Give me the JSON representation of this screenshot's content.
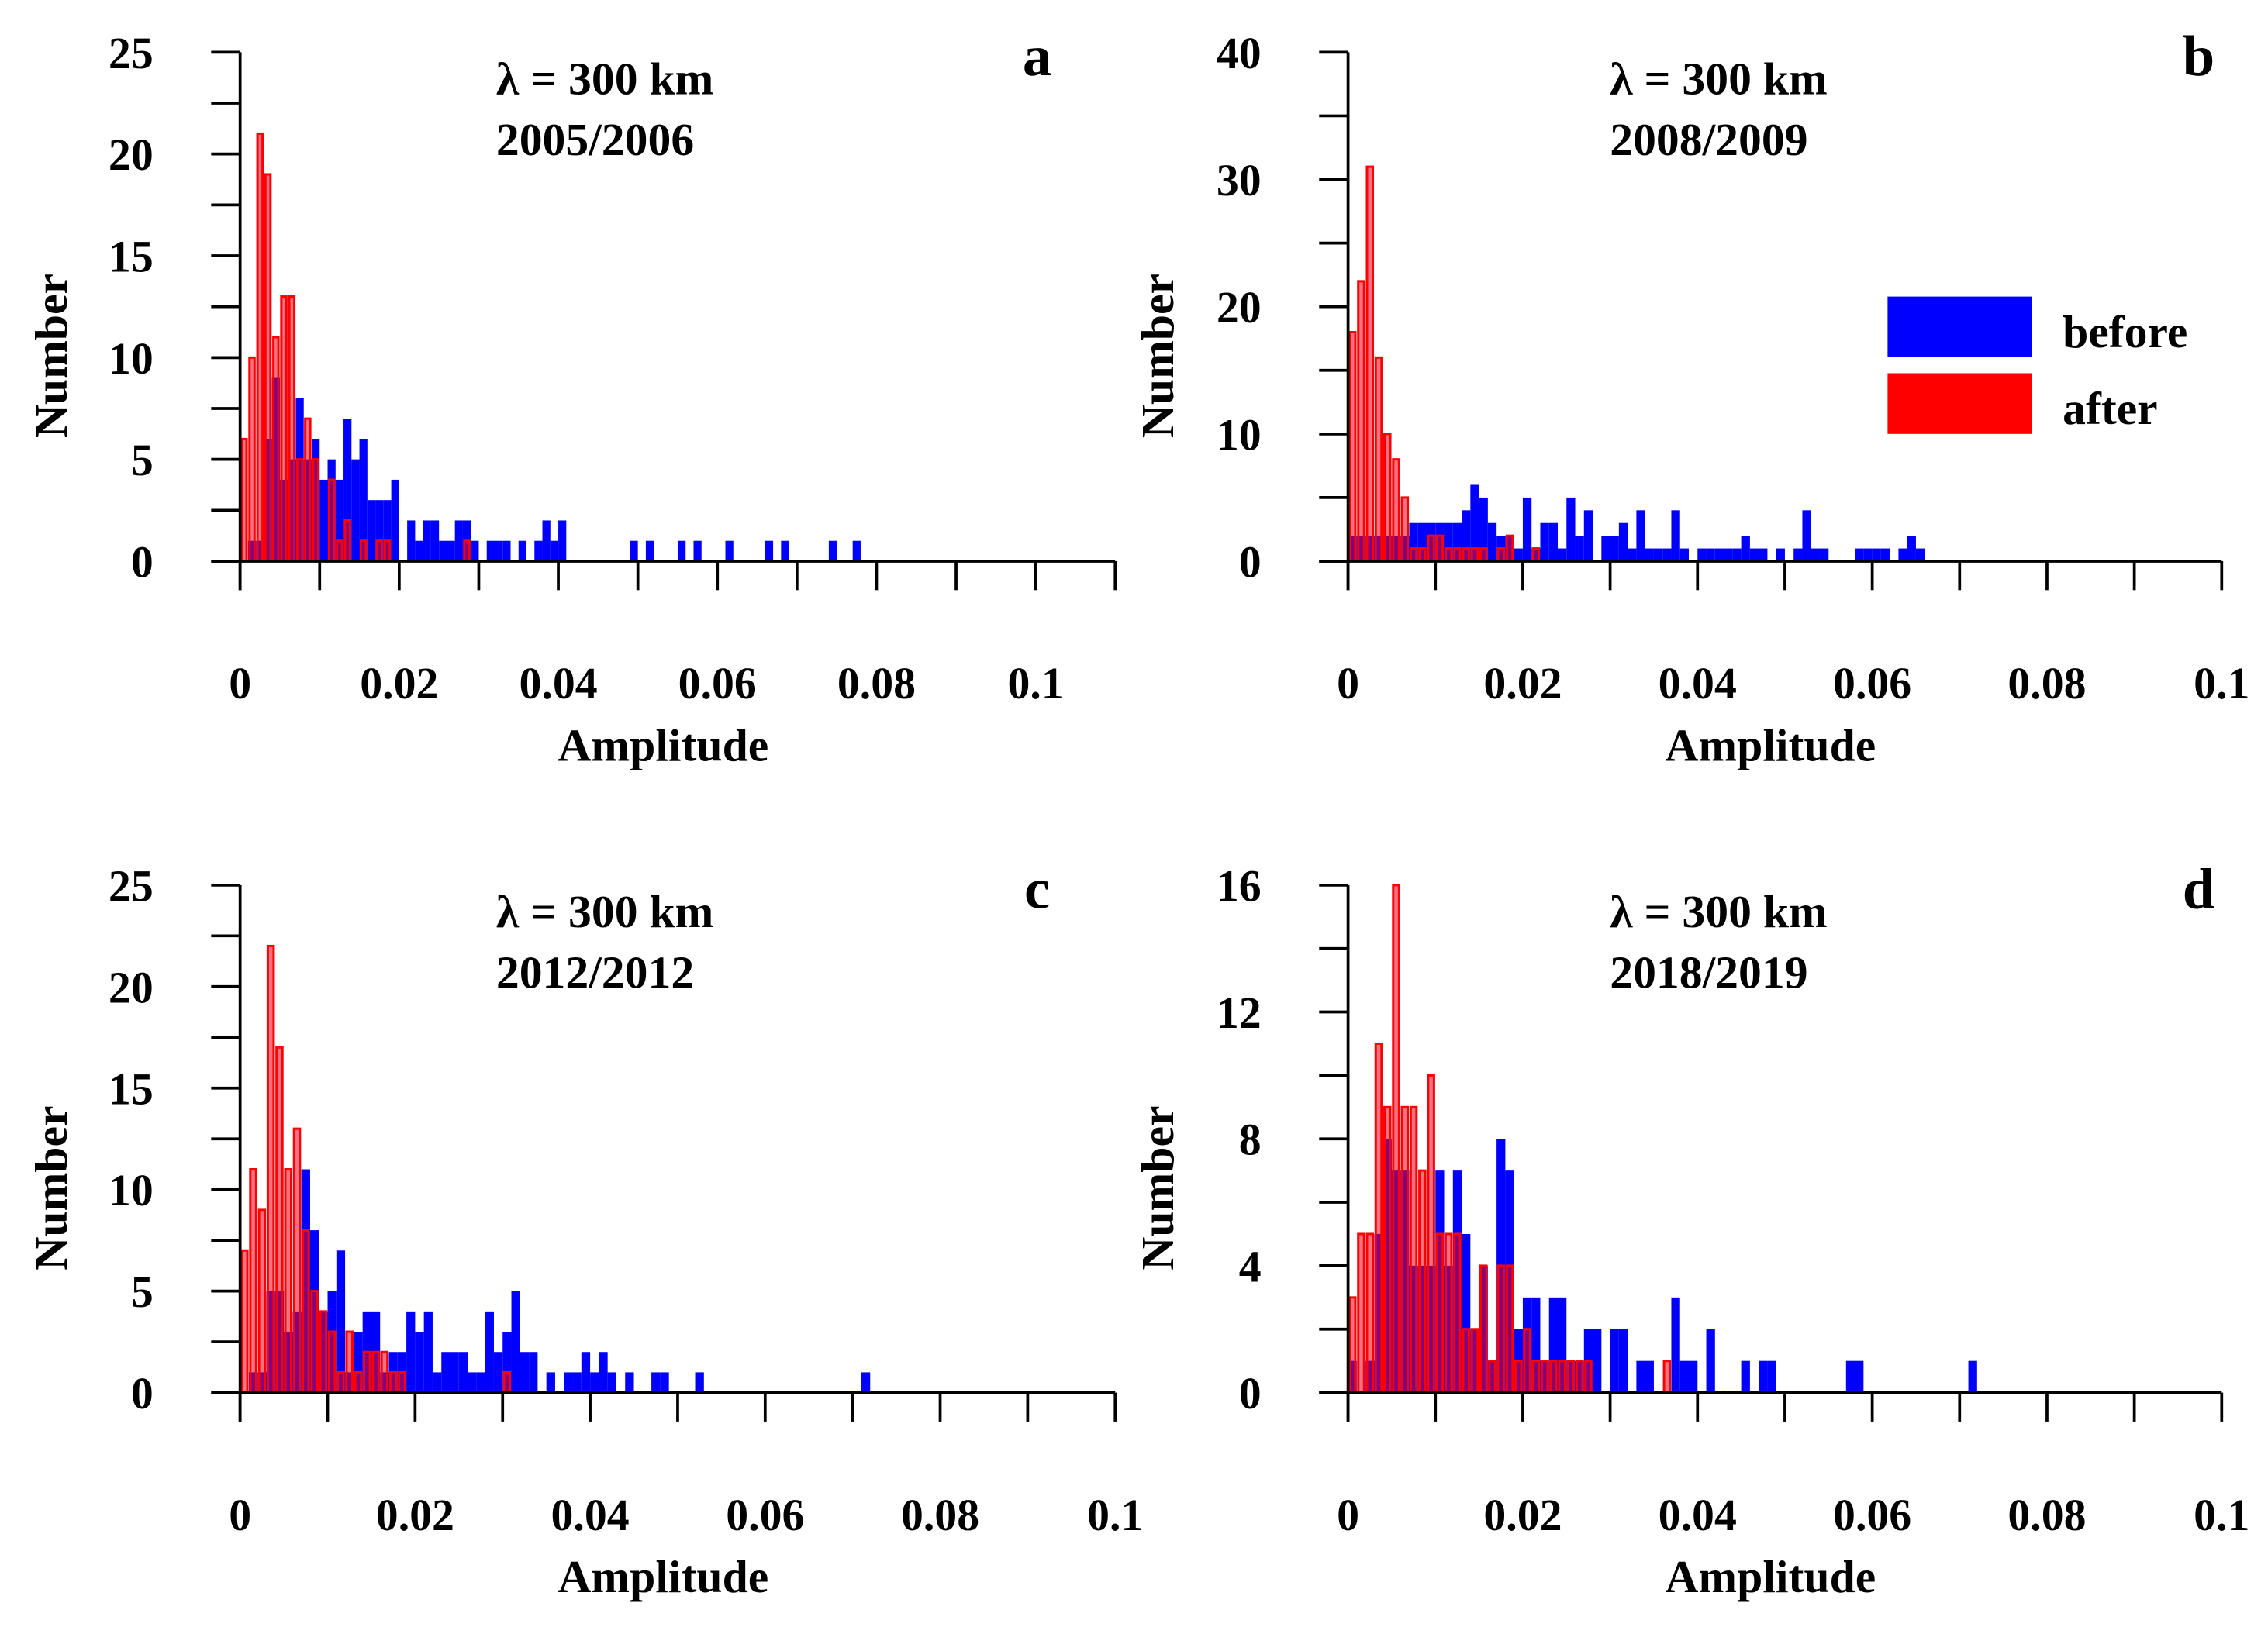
{
  "legend": {
    "before": {
      "label": "before",
      "color": "#0000ff"
    },
    "after": {
      "label": "after",
      "color": "#ff0000"
    }
  },
  "chart_data": [
    {
      "type": "bar",
      "panel": "a",
      "annotation": [
        "λ = 300 km",
        "2005/2006"
      ],
      "xlabel": "Amplitude",
      "ylabel": "Number",
      "xlim": [
        0,
        0.11
      ],
      "ylim": [
        0,
        25
      ],
      "xticks": [
        0,
        0.02,
        0.04,
        0.06,
        0.08,
        0.1
      ],
      "xtick_labels": [
        "0",
        "0.02",
        "0.04",
        "0.06",
        "0.08",
        "0.1"
      ],
      "x_minor_step": 0.01,
      "yticks": [
        0,
        5,
        10,
        15,
        20,
        25
      ],
      "ytick_labels": [
        "0",
        "5",
        "10",
        "15",
        "20",
        "25"
      ],
      "y_minor_step": 2.5,
      "bin_width": 0.001,
      "series": [
        {
          "name": "before",
          "values": [
            0,
            1,
            1,
            6,
            9,
            4,
            5,
            8,
            5,
            6,
            4,
            5,
            4,
            7,
            5,
            6,
            3,
            3,
            3,
            4,
            0,
            2,
            1,
            2,
            2,
            1,
            1,
            2,
            2,
            1,
            0,
            1,
            1,
            1,
            0,
            1,
            0,
            1,
            2,
            1,
            2,
            0,
            0,
            0,
            0,
            0,
            0,
            0,
            0,
            1,
            0,
            1,
            0,
            0,
            0,
            1,
            0,
            1,
            0,
            0,
            0,
            1,
            0,
            0,
            0,
            0,
            1,
            0,
            1,
            0,
            0,
            0,
            0,
            0,
            1,
            0,
            0,
            1
          ]
        },
        {
          "name": "after",
          "values": [
            6,
            10,
            21,
            19,
            11,
            13,
            13,
            5,
            7,
            5,
            0,
            4,
            1,
            2,
            0,
            1,
            0,
            1,
            1,
            0,
            0,
            0,
            0,
            0,
            0,
            0,
            0,
            0,
            1
          ]
        }
      ]
    },
    {
      "type": "bar",
      "panel": "b",
      "annotation": [
        "λ = 300 km",
        "2008/2009"
      ],
      "xlabel": "Amplitude",
      "ylabel": "Number",
      "xlim": [
        0,
        0.1
      ],
      "ylim": [
        0,
        40
      ],
      "xticks": [
        0,
        0.02,
        0.04,
        0.06,
        0.08,
        0.1
      ],
      "xtick_labels": [
        "0",
        "0.02",
        "0.04",
        "0.06",
        "0.08",
        "0.1"
      ],
      "x_minor_step": 0.01,
      "yticks": [
        0,
        10,
        20,
        30,
        40
      ],
      "ytick_labels": [
        "0",
        "10",
        "20",
        "30",
        "40"
      ],
      "y_minor_step": 5,
      "bin_width": 0.001,
      "legend_position": "right",
      "series": [
        {
          "name": "before",
          "values": [
            2,
            2,
            2,
            2,
            2,
            2,
            2,
            3,
            3,
            3,
            3,
            3,
            3,
            4,
            6,
            5,
            3,
            2,
            2,
            1,
            5,
            1,
            3,
            3,
            1,
            5,
            2,
            4,
            0,
            2,
            2,
            3,
            1,
            4,
            1,
            1,
            1,
            4,
            1,
            0,
            1,
            1,
            1,
            1,
            1,
            2,
            1,
            1,
            0,
            1,
            0,
            1,
            4,
            1,
            1,
            0,
            0,
            0,
            1,
            1,
            1,
            1,
            0,
            1,
            2,
            1,
            0
          ]
        },
        {
          "name": "after",
          "values": [
            18,
            22,
            31,
            16,
            10,
            8,
            5,
            1,
            1,
            2,
            2,
            1,
            1,
            1,
            1,
            1,
            0,
            1,
            2,
            0,
            0,
            1
          ]
        }
      ]
    },
    {
      "type": "bar",
      "panel": "c",
      "annotation": [
        "λ = 300 km",
        "2012/2012"
      ],
      "xlabel": "Amplitude",
      "ylabel": "Number",
      "xlim": [
        0,
        0.1
      ],
      "ylim": [
        0,
        25
      ],
      "xticks": [
        0,
        0.02,
        0.04,
        0.06,
        0.08,
        0.1
      ],
      "xtick_labels": [
        "0",
        "0.02",
        "0.04",
        "0.06",
        "0.08",
        "0.1"
      ],
      "x_minor_step": 0.01,
      "yticks": [
        0,
        5,
        10,
        15,
        20,
        25
      ],
      "ytick_labels": [
        "0",
        "5",
        "10",
        "15",
        "20",
        "25"
      ],
      "y_minor_step": 2.5,
      "bin_width": 0.001,
      "series": [
        {
          "name": "before",
          "values": [
            0,
            1,
            1,
            5,
            5,
            3,
            4,
            11,
            8,
            4,
            5,
            7,
            1,
            3,
            4,
            4,
            1,
            2,
            2,
            4,
            3,
            4,
            1,
            2,
            2,
            2,
            1,
            1,
            4,
            2,
            3,
            5,
            2,
            2,
            0,
            1,
            0,
            1,
            1,
            2,
            1,
            2,
            1,
            0,
            1,
            0,
            0,
            1,
            1,
            0,
            0,
            0,
            1,
            0,
            0,
            0,
            0,
            0,
            0,
            0,
            0,
            0,
            0,
            0,
            0,
            0,
            0,
            0,
            0,
            0,
            0,
            1
          ]
        },
        {
          "name": "after",
          "values": [
            7,
            11,
            9,
            22,
            17,
            11,
            13,
            8,
            5,
            4,
            3,
            1,
            3,
            1,
            2,
            2,
            2,
            1,
            1,
            0,
            0,
            0,
            0,
            0,
            0,
            0,
            0,
            0,
            0,
            0,
            1
          ]
        }
      ]
    },
    {
      "type": "bar",
      "panel": "d",
      "annotation": [
        "λ = 300 km",
        "2018/2019"
      ],
      "xlabel": "Amplitude",
      "ylabel": "Number",
      "xlim": [
        0,
        0.1
      ],
      "ylim": [
        0,
        16
      ],
      "xticks": [
        0,
        0.02,
        0.04,
        0.06,
        0.08,
        0.1
      ],
      "xtick_labels": [
        "0",
        "0.02",
        "0.04",
        "0.06",
        "0.08",
        "0.1"
      ],
      "x_minor_step": 0.01,
      "yticks": [
        0,
        4,
        8,
        12,
        16
      ],
      "ytick_labels": [
        "0",
        "4",
        "8",
        "12",
        "16"
      ],
      "y_minor_step": 2,
      "bin_width": 0.001,
      "series": [
        {
          "name": "before",
          "values": [
            1,
            0,
            1,
            5,
            8,
            7,
            7,
            4,
            4,
            4,
            7,
            4,
            7,
            5,
            2,
            4,
            1,
            8,
            7,
            2,
            3,
            3,
            1,
            3,
            3,
            1,
            1,
            2,
            2,
            0,
            2,
            2,
            0,
            1,
            1,
            0,
            0,
            3,
            1,
            1,
            0,
            2,
            0,
            0,
            0,
            1,
            0,
            1,
            1,
            0,
            0,
            0,
            0,
            0,
            0,
            0,
            0,
            1,
            1,
            0,
            0,
            0,
            0,
            0,
            0,
            0,
            0,
            0,
            0,
            0,
            0,
            1
          ]
        },
        {
          "name": "after",
          "values": [
            3,
            5,
            5,
            11,
            9,
            16,
            9,
            9,
            7,
            10,
            5,
            5,
            5,
            2,
            2,
            4,
            1,
            4,
            4,
            1,
            2,
            1,
            1,
            1,
            1,
            1,
            1,
            1,
            0,
            0,
            0,
            0,
            0,
            0,
            0,
            0,
            1
          ]
        }
      ]
    }
  ]
}
